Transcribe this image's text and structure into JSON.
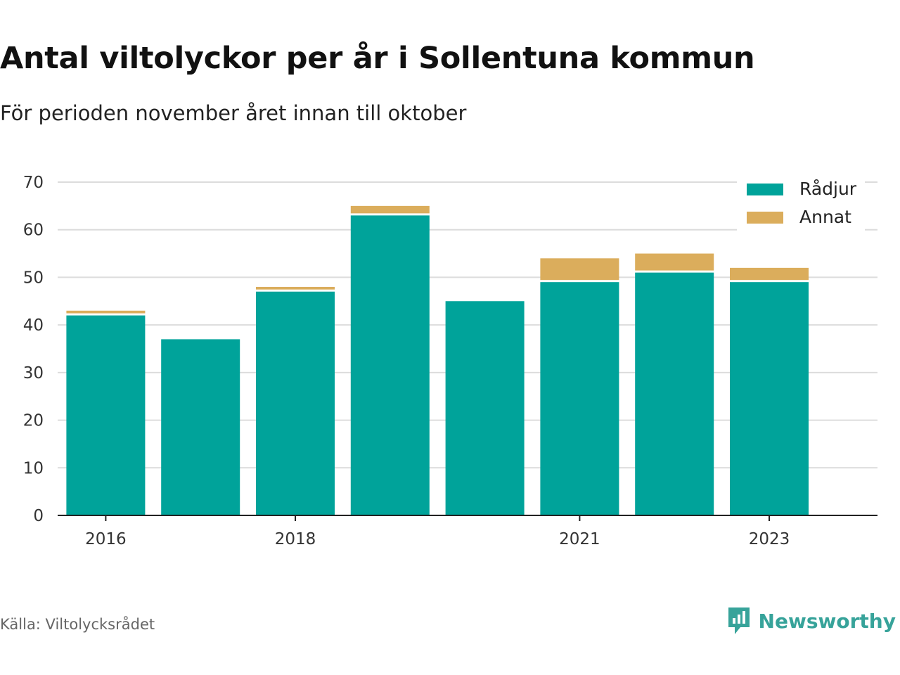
{
  "title": "Antal viltolyckor per år i Sollentuna kommun",
  "subtitle": "För perioden november året innan till oktober",
  "source": "Källa: Viltolycksrådet",
  "brand": {
    "name": "Newsworthy",
    "icon": "newsworthy-logo-icon",
    "color": "#37a39a"
  },
  "chart_data": {
    "type": "bar",
    "stacked": true,
    "categories": [
      "2016",
      "2017",
      "2018",
      "2019",
      "2020",
      "2021",
      "2022",
      "2023"
    ],
    "x_tick_labels": [
      "2016",
      "",
      "2018",
      "",
      "",
      "2021",
      "",
      "2023"
    ],
    "series": [
      {
        "name": "Rådjur",
        "values": [
          42,
          37,
          47,
          63,
          45,
          49,
          51,
          49
        ],
        "color": "#00a39a"
      },
      {
        "name": "Annat",
        "values": [
          1,
          0,
          1,
          2,
          0,
          5,
          4,
          3
        ],
        "color": "#dbad5c"
      }
    ],
    "ylim": [
      0,
      70
    ],
    "yticks": [
      0,
      10,
      20,
      30,
      40,
      50,
      60,
      70
    ],
    "grid": true,
    "legend": "top-right"
  }
}
